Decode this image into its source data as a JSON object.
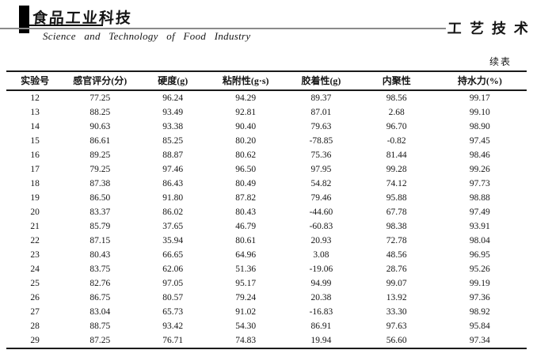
{
  "journal": {
    "logo_cn": "食品工业科技",
    "name_en": "Science and Technology of Food Industry",
    "section_cn": "工艺技术"
  },
  "table": {
    "continued_label": "续表",
    "columns": [
      "实验号",
      "感官评分(分)",
      "硬度(g)",
      "粘附性(g·s)",
      "胶着性(g)",
      "内聚性",
      "持水力(%)"
    ],
    "rows": [
      [
        "12",
        "77.25",
        "96.24",
        "94.29",
        "89.37",
        "98.56",
        "99.17"
      ],
      [
        "13",
        "88.25",
        "93.49",
        "92.81",
        "87.01",
        "2.68",
        "99.10"
      ],
      [
        "14",
        "90.63",
        "93.38",
        "90.40",
        "79.63",
        "96.70",
        "98.90"
      ],
      [
        "15",
        "86.61",
        "85.25",
        "80.20",
        "-78.85",
        "-0.82",
        "97.45"
      ],
      [
        "16",
        "89.25",
        "88.87",
        "80.62",
        "75.36",
        "81.44",
        "98.46"
      ],
      [
        "17",
        "79.25",
        "97.46",
        "96.50",
        "97.95",
        "99.28",
        "99.26"
      ],
      [
        "18",
        "87.38",
        "86.43",
        "80.49",
        "54.82",
        "74.12",
        "97.73"
      ],
      [
        "19",
        "86.50",
        "91.80",
        "87.82",
        "79.46",
        "95.88",
        "98.88"
      ],
      [
        "20",
        "83.37",
        "86.02",
        "80.43",
        "-44.60",
        "67.78",
        "97.49"
      ],
      [
        "21",
        "85.79",
        "37.65",
        "46.79",
        "-60.83",
        "98.38",
        "93.91"
      ],
      [
        "22",
        "87.15",
        "35.94",
        "80.61",
        "20.93",
        "72.78",
        "98.04"
      ],
      [
        "23",
        "80.43",
        "66.65",
        "64.96",
        "3.08",
        "48.56",
        "96.95"
      ],
      [
        "24",
        "83.75",
        "62.06",
        "51.36",
        "-19.06",
        "28.76",
        "95.26"
      ],
      [
        "25",
        "82.76",
        "97.05",
        "95.17",
        "94.99",
        "99.07",
        "99.19"
      ],
      [
        "26",
        "86.75",
        "80.57",
        "79.24",
        "20.38",
        "13.92",
        "97.36"
      ],
      [
        "27",
        "83.04",
        "65.73",
        "91.02",
        "-16.83",
        "33.30",
        "98.92"
      ],
      [
        "28",
        "88.75",
        "93.42",
        "54.30",
        "86.91",
        "97.63",
        "95.84"
      ],
      [
        "29",
        "87.25",
        "76.71",
        "74.83",
        "19.94",
        "56.60",
        "97.34"
      ]
    ],
    "column_widths_pct": [
      11,
      14,
      14,
      14,
      15,
      14,
      18
    ]
  },
  "colors": {
    "ink": "#151515",
    "rule_gray": "#8a8a8a",
    "paper": "#ffffff"
  }
}
